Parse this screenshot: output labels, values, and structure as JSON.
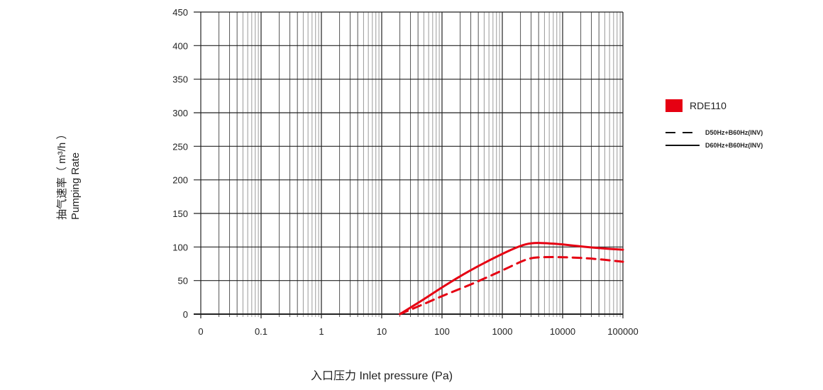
{
  "chart_data": {
    "type": "line",
    "title": "",
    "xlabel": "入口压力 Inlet pressure (Pa)",
    "ylabel_cn": "抽气速率（ m³/h ）",
    "ylabel_en": "Pumping Rate",
    "x_scale": "log",
    "xlim": [
      0.01,
      100000
    ],
    "ylim": [
      0,
      450
    ],
    "x_tick_labels": [
      "0",
      "0.1",
      "1",
      "10",
      "100",
      "1000",
      "10000",
      "100000"
    ],
    "y_tick_labels": [
      "0",
      "50",
      "100",
      "150",
      "200",
      "250",
      "300",
      "350",
      "400",
      "450"
    ],
    "grid": true,
    "legend_position": "right",
    "legend": {
      "model": "RDE110",
      "model_color": "#e60012",
      "entries": [
        {
          "style": "dashed",
          "label": "D50Hz+B60Hz(INV)"
        },
        {
          "style": "solid",
          "label": "D60Hz+B60Hz(INV)"
        }
      ]
    },
    "series": [
      {
        "name": "RDE110 D60Hz+B60Hz(INV)",
        "style": "solid",
        "color": "#e60012",
        "x": [
          20,
          50,
          100,
          300,
          1000,
          2000,
          3000,
          5000,
          10000,
          30000,
          100000
        ],
        "y": [
          0,
          22,
          40,
          66,
          90,
          102,
          106,
          106,
          104,
          99,
          96
        ]
      },
      {
        "name": "RDE110 D50Hz+B60Hz(INV)",
        "style": "dashed",
        "color": "#e60012",
        "x": [
          20,
          50,
          100,
          300,
          1000,
          2000,
          3000,
          5000,
          10000,
          30000,
          100000
        ],
        "y": [
          0,
          15,
          27,
          44,
          65,
          78,
          84,
          85,
          85,
          83,
          78
        ]
      }
    ]
  }
}
